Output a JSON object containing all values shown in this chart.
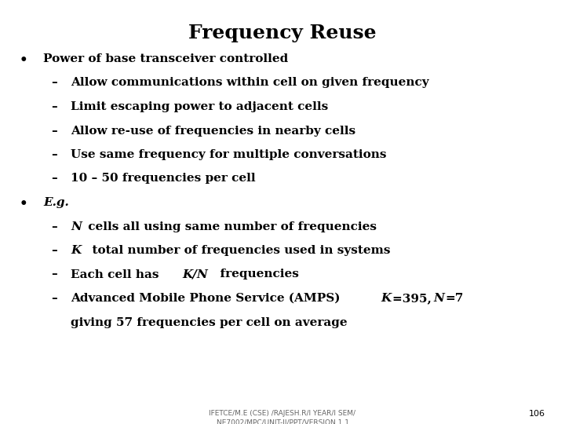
{
  "title": "Frequency Reuse",
  "background_color": "#ffffff",
  "text_color": "#000000",
  "title_fontsize": 18,
  "body_fontsize": 11,
  "footer_text": "IFETCE/M.E (CSE) /RAJESH.R/I YEAR/I SEM/\nNE7002/MPC/UNIT-II/PPT/VERSION 1.1",
  "page_number": "106",
  "bullet1": "Power of base transceiver controlled",
  "sub1_1": "Allow communications within cell on given frequency",
  "sub1_2": "Limit escaping power to adjacent cells",
  "sub1_3": "Allow re-use of frequencies in nearby cells",
  "sub1_4": "Use same frequency for multiple conversations",
  "sub1_5": "10 – 50 frequencies per cell",
  "bullet2_italic": "E.g.",
  "sub2_1_italic": "N",
  "sub2_1_rest": " cells all using same number of frequencies",
  "sub2_2_italic": "K",
  "sub2_2_rest": "  total number of frequencies used in systems",
  "sub2_3_pre": "Each cell has ",
  "sub2_3_italic": "K/N",
  "sub2_3_rest": "  frequencies",
  "sub2_4_pre": "Advanced Mobile Phone Service (AMPS) ",
  "sub2_4_italic1": "K",
  "sub2_4_mid": "=395, ",
  "sub2_4_italic2": "N",
  "sub2_4_end": "=7",
  "sub2_5": "giving 57 frequencies per cell on average"
}
